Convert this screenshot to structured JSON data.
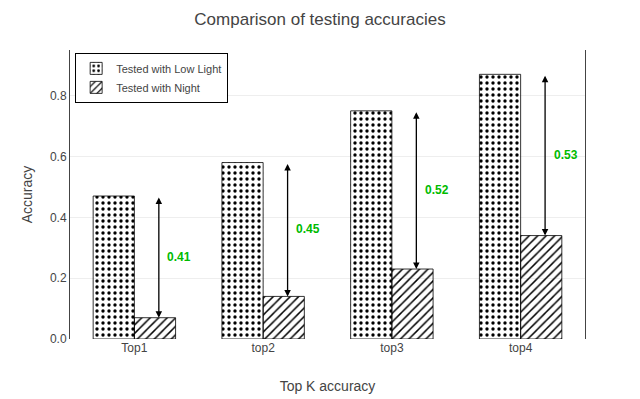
{
  "chart_data": {
    "type": "bar",
    "title": "Comparison of testing accuracies",
    "xlabel": "Top K accuracy",
    "ylabel": "Accuracy",
    "categories": [
      "Top1",
      "top2",
      "top3",
      "top4"
    ],
    "series": [
      {
        "name": "Tested with Low Light",
        "color": "#FF1111",
        "marker": "dots",
        "values": [
          0.47,
          0.58,
          0.75,
          0.87
        ]
      },
      {
        "name": "Tested with Night",
        "color": "#009999",
        "marker": "hatch",
        "values": [
          0.07,
          0.14,
          0.23,
          0.34
        ]
      }
    ],
    "annotations": [
      {
        "text": "0.41",
        "color": "#00BB00"
      },
      {
        "text": "0.45",
        "color": "#00BB00"
      },
      {
        "text": "0.52",
        "color": "#00BB00"
      },
      {
        "text": "0.53",
        "color": "#00BB00"
      }
    ],
    "ylim": [
      0.0,
      0.95
    ],
    "yticks": [
      {
        "value": 0,
        "label": "0.0"
      },
      0.2,
      0.4,
      0.6,
      0.8
    ],
    "grid": true,
    "legend": "upper left"
  }
}
